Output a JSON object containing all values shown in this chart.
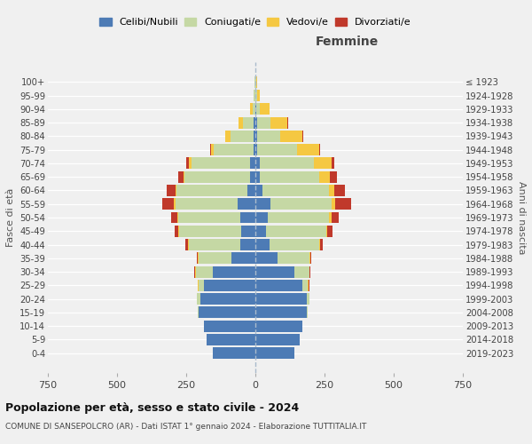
{
  "age_groups": [
    "0-4",
    "5-9",
    "10-14",
    "15-19",
    "20-24",
    "25-29",
    "30-34",
    "35-39",
    "40-44",
    "45-49",
    "50-54",
    "55-59",
    "60-64",
    "65-69",
    "70-74",
    "75-79",
    "80-84",
    "85-89",
    "90-94",
    "95-99",
    "100+"
  ],
  "birth_years": [
    "2019-2023",
    "2014-2018",
    "2009-2013",
    "2004-2008",
    "1999-2003",
    "1994-1998",
    "1989-1993",
    "1984-1988",
    "1979-1983",
    "1974-1978",
    "1969-1973",
    "1964-1968",
    "1959-1963",
    "1954-1958",
    "1949-1953",
    "1944-1948",
    "1939-1943",
    "1934-1938",
    "1929-1933",
    "1924-1928",
    "≤ 1923"
  ],
  "male": {
    "celibi": [
      155,
      175,
      185,
      205,
      200,
      185,
      155,
      85,
      55,
      50,
      55,
      65,
      30,
      20,
      20,
      5,
      5,
      5,
      0,
      0,
      0
    ],
    "coniugati": [
      0,
      0,
      0,
      3,
      10,
      20,
      60,
      120,
      185,
      225,
      225,
      225,
      255,
      235,
      210,
      145,
      85,
      40,
      10,
      5,
      2
    ],
    "vedovi": [
      0,
      0,
      0,
      0,
      2,
      2,
      2,
      3,
      3,
      3,
      3,
      5,
      5,
      5,
      10,
      10,
      20,
      15,
      10,
      3,
      0
    ],
    "divorziati": [
      0,
      0,
      0,
      0,
      0,
      2,
      3,
      5,
      10,
      15,
      20,
      40,
      30,
      20,
      10,
      5,
      0,
      0,
      0,
      0,
      0
    ]
  },
  "female": {
    "nubili": [
      140,
      160,
      170,
      185,
      185,
      170,
      140,
      80,
      50,
      40,
      45,
      55,
      25,
      15,
      15,
      5,
      5,
      5,
      2,
      0,
      0
    ],
    "coniugate": [
      0,
      0,
      0,
      3,
      10,
      20,
      55,
      115,
      180,
      215,
      220,
      220,
      240,
      215,
      195,
      145,
      85,
      50,
      15,
      5,
      2
    ],
    "vedove": [
      0,
      0,
      0,
      0,
      2,
      2,
      2,
      3,
      3,
      5,
      10,
      15,
      20,
      40,
      65,
      80,
      80,
      60,
      35,
      10,
      3
    ],
    "divorziate": [
      0,
      0,
      0,
      0,
      0,
      2,
      3,
      5,
      12,
      20,
      25,
      55,
      40,
      25,
      10,
      5,
      3,
      2,
      0,
      0,
      0
    ]
  },
  "colors": {
    "celibi": "#4d7bb5",
    "coniugati": "#c5d8a4",
    "vedovi": "#f5c842",
    "divorziati": "#c0392b"
  },
  "title": "Popolazione per età, sesso e stato civile - 2024",
  "subtitle": "COMUNE DI SANSEPOLCRO (AR) - Dati ISTAT 1° gennaio 2024 - Elaborazione TUTTITALIA.IT",
  "xlabel_right": "Femmine",
  "ylabel_left": "Fasce di età",
  "ylabel_right": "Anni di nascita",
  "xlim": 750,
  "background_color": "#f0f0f0",
  "grid_color": "#ffffff"
}
